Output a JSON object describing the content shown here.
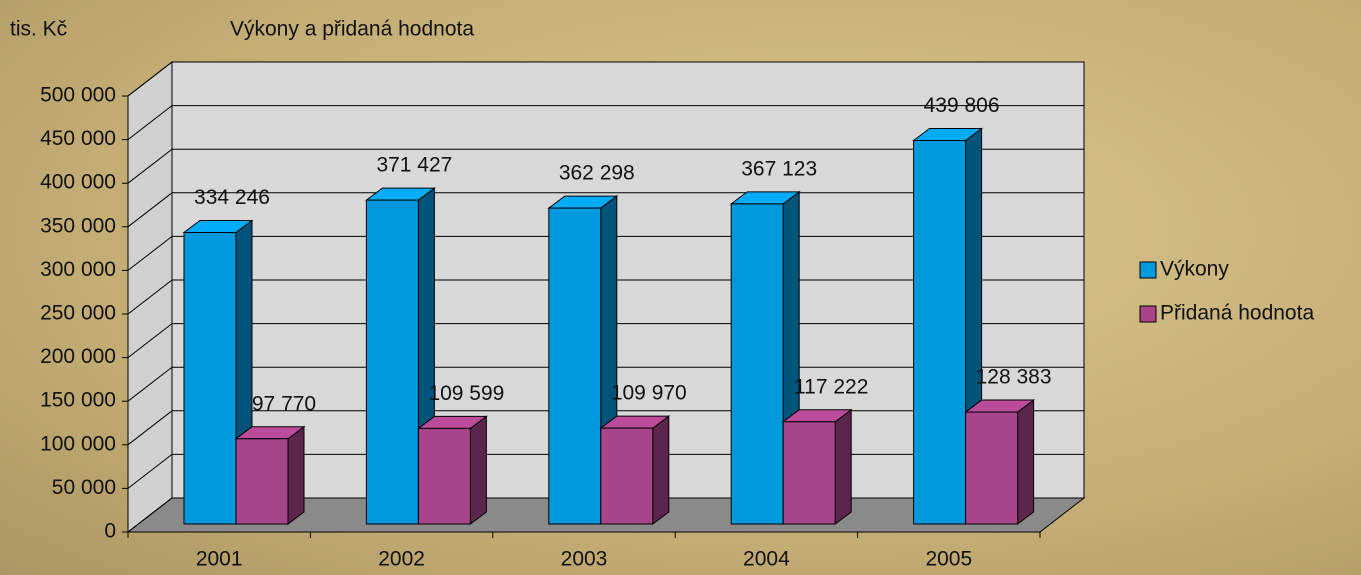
{
  "chart_data": {
    "type": "bar3d",
    "title": "Výkony a přidaná hodnota",
    "y_axis_label": "tis. Kč",
    "categories": [
      "2001",
      "2002",
      "2003",
      "2004",
      "2005"
    ],
    "series": [
      {
        "name": "Výkony",
        "color": "#0099dd",
        "values": [
          334246,
          371427,
          362298,
          367123,
          439806
        ],
        "value_labels": [
          "334 246",
          "371 427",
          "362 298",
          "367 123",
          "439 806"
        ]
      },
      {
        "name": "Přidaná hodnota",
        "color": "#a8448a",
        "values": [
          97770,
          109599,
          109970,
          117222,
          128383
        ],
        "value_labels": [
          "97 770",
          "109 599",
          "109 970",
          "117 222",
          "128 383"
        ]
      }
    ],
    "ylim": [
      0,
      500000
    ],
    "yticks": [
      0,
      {
        "value": 50000,
        "label": "50 000"
      },
      {
        "value": 100000,
        "label": "100 000"
      },
      {
        "value": 150000,
        "label": "150 000"
      },
      {
        "value": 200000,
        "label": "200 000"
      },
      {
        "value": 250000,
        "label": "250 000"
      },
      {
        "value": 300000,
        "label": "300 000"
      },
      {
        "value": 350000,
        "label": "350 000"
      },
      {
        "value": 400000,
        "label": "400 000"
      },
      {
        "value": 450000,
        "label": "450 000"
      },
      {
        "value": 500000,
        "label": "500 000"
      }
    ],
    "grid": true,
    "legend": "right"
  }
}
